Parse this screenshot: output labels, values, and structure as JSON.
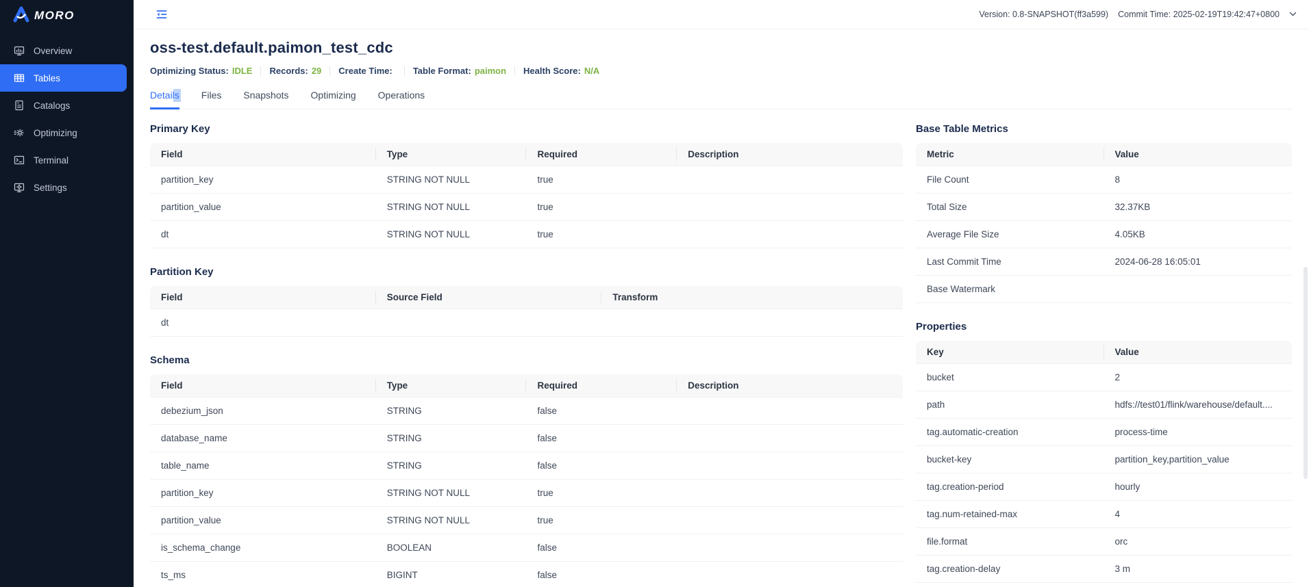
{
  "topbar": {
    "version_text": "Version: 0.8-SNAPSHOT(ff3a599)",
    "commit_text": "Commit Time: 2025-02-19T19:42:47+0800"
  },
  "sidebar": {
    "logo_text": "MORO",
    "items": [
      {
        "label": "Overview",
        "icon": "overview-icon",
        "active": false
      },
      {
        "label": "Tables",
        "icon": "tables-icon",
        "active": true
      },
      {
        "label": "Catalogs",
        "icon": "catalogs-icon",
        "active": false
      },
      {
        "label": "Optimizing",
        "icon": "optimizing-icon",
        "active": false
      },
      {
        "label": "Terminal",
        "icon": "terminal-icon",
        "active": false
      },
      {
        "label": "Settings",
        "icon": "settings-icon",
        "active": false
      }
    ]
  },
  "page": {
    "title": "oss-test.default.paimon_test_cdc",
    "status": [
      {
        "label": "Optimizing Status:",
        "value": "IDLE"
      },
      {
        "label": "Records:",
        "value": "29"
      },
      {
        "label": "Create Time:",
        "value": ""
      },
      {
        "label": "Table Format:",
        "value": "paimon"
      },
      {
        "label": "Health Score:",
        "value": "N/A"
      }
    ]
  },
  "tabs": {
    "active": "Details",
    "items": [
      "Details",
      "Files",
      "Snapshots",
      "Optimizing",
      "Operations"
    ]
  },
  "sections": {
    "primary_key": {
      "title": "Primary Key",
      "columns": [
        "Field",
        "Type",
        "Required",
        "Description"
      ],
      "rows": [
        [
          "partition_key",
          "STRING NOT NULL",
          "true",
          ""
        ],
        [
          "partition_value",
          "STRING NOT NULL",
          "true",
          ""
        ],
        [
          "dt",
          "STRING NOT NULL",
          "true",
          ""
        ]
      ]
    },
    "partition_key": {
      "title": "Partition Key",
      "columns": [
        "Field",
        "Source Field",
        "Transform"
      ],
      "rows": [
        [
          "dt",
          "",
          ""
        ]
      ]
    },
    "schema": {
      "title": "Schema",
      "columns": [
        "Field",
        "Type",
        "Required",
        "Description"
      ],
      "rows": [
        [
          "debezium_json",
          "STRING",
          "false",
          ""
        ],
        [
          "database_name",
          "STRING",
          "false",
          ""
        ],
        [
          "table_name",
          "STRING",
          "false",
          ""
        ],
        [
          "partition_key",
          "STRING NOT NULL",
          "true",
          ""
        ],
        [
          "partition_value",
          "STRING NOT NULL",
          "true",
          ""
        ],
        [
          "is_schema_change",
          "BOOLEAN",
          "false",
          ""
        ],
        [
          "ts_ms",
          "BIGINT",
          "false",
          ""
        ]
      ]
    },
    "metrics": {
      "title": "Base Table Metrics",
      "columns": [
        "Metric",
        "Value"
      ],
      "rows": [
        [
          "File Count",
          "8"
        ],
        [
          "Total Size",
          "32.37KB"
        ],
        [
          "Average File Size",
          "4.05KB"
        ],
        [
          "Last Commit Time",
          "2024-06-28 16:05:01"
        ],
        [
          "Base Watermark",
          ""
        ]
      ]
    },
    "properties": {
      "title": "Properties",
      "columns": [
        "Key",
        "Value"
      ],
      "rows": [
        [
          "bucket",
          "2"
        ],
        [
          "path",
          "hdfs://test01/flink/warehouse/default...."
        ],
        [
          "tag.automatic-creation",
          "process-time"
        ],
        [
          "bucket-key",
          "partition_key,partition_value"
        ],
        [
          "tag.creation-period",
          "hourly"
        ],
        [
          "tag.num-retained-max",
          "4"
        ],
        [
          "file.format",
          "orc"
        ],
        [
          "tag.creation-delay",
          "3 m"
        ]
      ]
    }
  },
  "colors": {
    "accent_blue": "#2f6df4",
    "status_green": "#7cb342",
    "sidebar_bg": "#0e1726",
    "heading_navy": "#1b2b4d"
  }
}
